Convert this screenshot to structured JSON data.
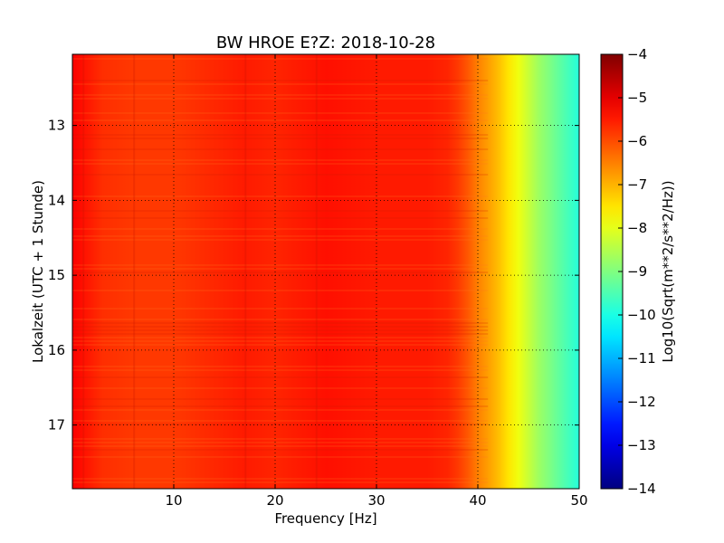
{
  "chart_data": {
    "type": "heatmap",
    "title": "BW HROE E?Z: 2018-10-28",
    "xlabel": "Frequency [Hz]",
    "ylabel": "Lokalzeit (UTC + 1 Stunde)",
    "xlim": [
      0,
      50
    ],
    "ylim": [
      17.85,
      12.05
    ],
    "x_ticks": [
      10,
      20,
      30,
      40,
      50
    ],
    "x_tick_labels": [
      "10",
      "20",
      "30",
      "40",
      "50"
    ],
    "y_ticks": [
      13,
      14,
      15,
      16,
      17
    ],
    "y_tick_labels": [
      "13",
      "14",
      "15",
      "16",
      "17"
    ],
    "grid": true,
    "colormap": "jet",
    "colorbar": {
      "label": "Log10(Sqrt(m**2/s**2/Hz))",
      "range": [
        -14,
        -4
      ],
      "ticks": [
        -4,
        -5,
        -6,
        -7,
        -8,
        -9,
        -10,
        -11,
        -12,
        -13,
        -14
      ],
      "tick_labels": [
        "−4",
        "−5",
        "−6",
        "−7",
        "−8",
        "−9",
        "−10",
        "−11",
        "−12",
        "−13",
        "−14"
      ]
    },
    "frequency_profile": {
      "frequency_hz": [
        0,
        1,
        3,
        6,
        10,
        17,
        20,
        25,
        30,
        35,
        37,
        38,
        39,
        40,
        41,
        42,
        43,
        44,
        45,
        46,
        47,
        48,
        49,
        50
      ],
      "level_log10": [
        -5.2,
        -5.4,
        -5.7,
        -5.8,
        -5.8,
        -5.5,
        -5.6,
        -5.4,
        -5.5,
        -5.5,
        -5.6,
        -5.8,
        -6.1,
        -6.5,
        -6.8,
        -7.1,
        -7.5,
        -7.9,
        -8.3,
        -8.7,
        -9.0,
        -9.3,
        -9.6,
        -9.9
      ]
    }
  }
}
